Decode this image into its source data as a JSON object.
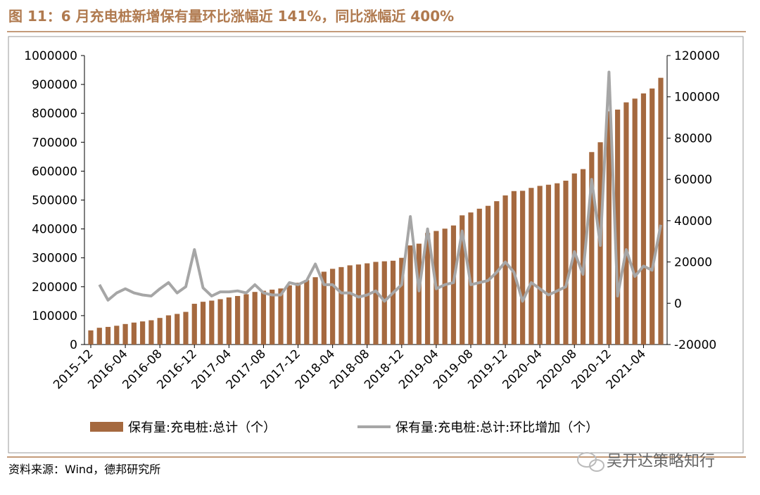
{
  "chart_data": {
    "type": "bar_line",
    "title": "图 11：6 月充电桩新增保有量环比涨幅近 141%，同比涨幅近 400%",
    "source": "资料来源：Wind，德邦研究所",
    "watermark": "吴开达策略知行",
    "categories": [
      "2015-12",
      null,
      null,
      null,
      "2016-04",
      null,
      null,
      null,
      "2016-08",
      null,
      null,
      null,
      "2016-12",
      null,
      null,
      null,
      "2017-04",
      null,
      null,
      null,
      "2017-08",
      null,
      null,
      null,
      "2017-12",
      null,
      null,
      null,
      "2018-04",
      null,
      null,
      null,
      "2018-08",
      null,
      null,
      null,
      "2018-12",
      null,
      null,
      null,
      "2019-04",
      null,
      null,
      null,
      "2019-08",
      null,
      null,
      null,
      "2019-12",
      null,
      null,
      null,
      "2020-04",
      null,
      null,
      null,
      "2020-08",
      null,
      null,
      null,
      "2020-12",
      null,
      null,
      null,
      "2021-04",
      null,
      null
    ],
    "series": [
      {
        "name": "保有量:充电桩:总计（个）",
        "type": "bar",
        "color": "#a5693f",
        "values": [
          49000,
          58000,
          61000,
          65000,
          71000,
          76000,
          80000,
          84000,
          92000,
          101000,
          106000,
          113000,
          141000,
          148000,
          152000,
          157000,
          163000,
          168000,
          174000,
          182000,
          186000,
          190000,
          194000,
          205000,
          214000,
          223000,
          233000,
          252000,
          262000,
          268000,
          274000,
          277000,
          281000,
          286000,
          288000,
          290000,
          300000,
          343000,
          349000,
          386000,
          393000,
          401000,
          412000,
          447000,
          457000,
          470000,
          480000,
          496000,
          516000,
          531000,
          532000,
          542000,
          549000,
          553000,
          558000,
          567000,
          592000,
          607000,
          666000,
          700000,
          807000,
          813000,
          838000,
          851000,
          869000,
          886000,
          923000
        ]
      },
      {
        "name": "保有量:充电桩:总计:环比增加（个）",
        "type": "line",
        "axis": "y2",
        "color": "#a6a6a6",
        "values": [
          null,
          9000,
          1500,
          5000,
          7000,
          5000,
          4000,
          3500,
          7000,
          10000,
          5000,
          8000,
          26000,
          7500,
          3500,
          5500,
          5500,
          6000,
          5000,
          9000,
          5000,
          4000,
          4000,
          10000,
          9000,
          11000,
          19000,
          9000,
          9000,
          5000,
          5000,
          3000,
          4000,
          6000,
          1000,
          5000,
          9000,
          42000,
          6000,
          36000,
          7000,
          9000,
          10000,
          35000,
          9000,
          10000,
          11000,
          15000,
          20000,
          15000,
          1000,
          10000,
          7000,
          4000,
          6000,
          8000,
          25000,
          14000,
          60000,
          28000,
          112000,
          3500,
          26000,
          13000,
          18000,
          16000,
          38000
        ]
      }
    ],
    "ylim": [
      0,
      1000000
    ],
    "yticks": [
      0,
      100000,
      200000,
      300000,
      400000,
      500000,
      600000,
      700000,
      800000,
      900000,
      1000000
    ],
    "y2lim": [
      -20000,
      120000
    ],
    "y2ticks": [
      -20000,
      0,
      20000,
      40000,
      60000,
      80000,
      100000,
      120000
    ],
    "grid": false,
    "legend": "bottom"
  }
}
